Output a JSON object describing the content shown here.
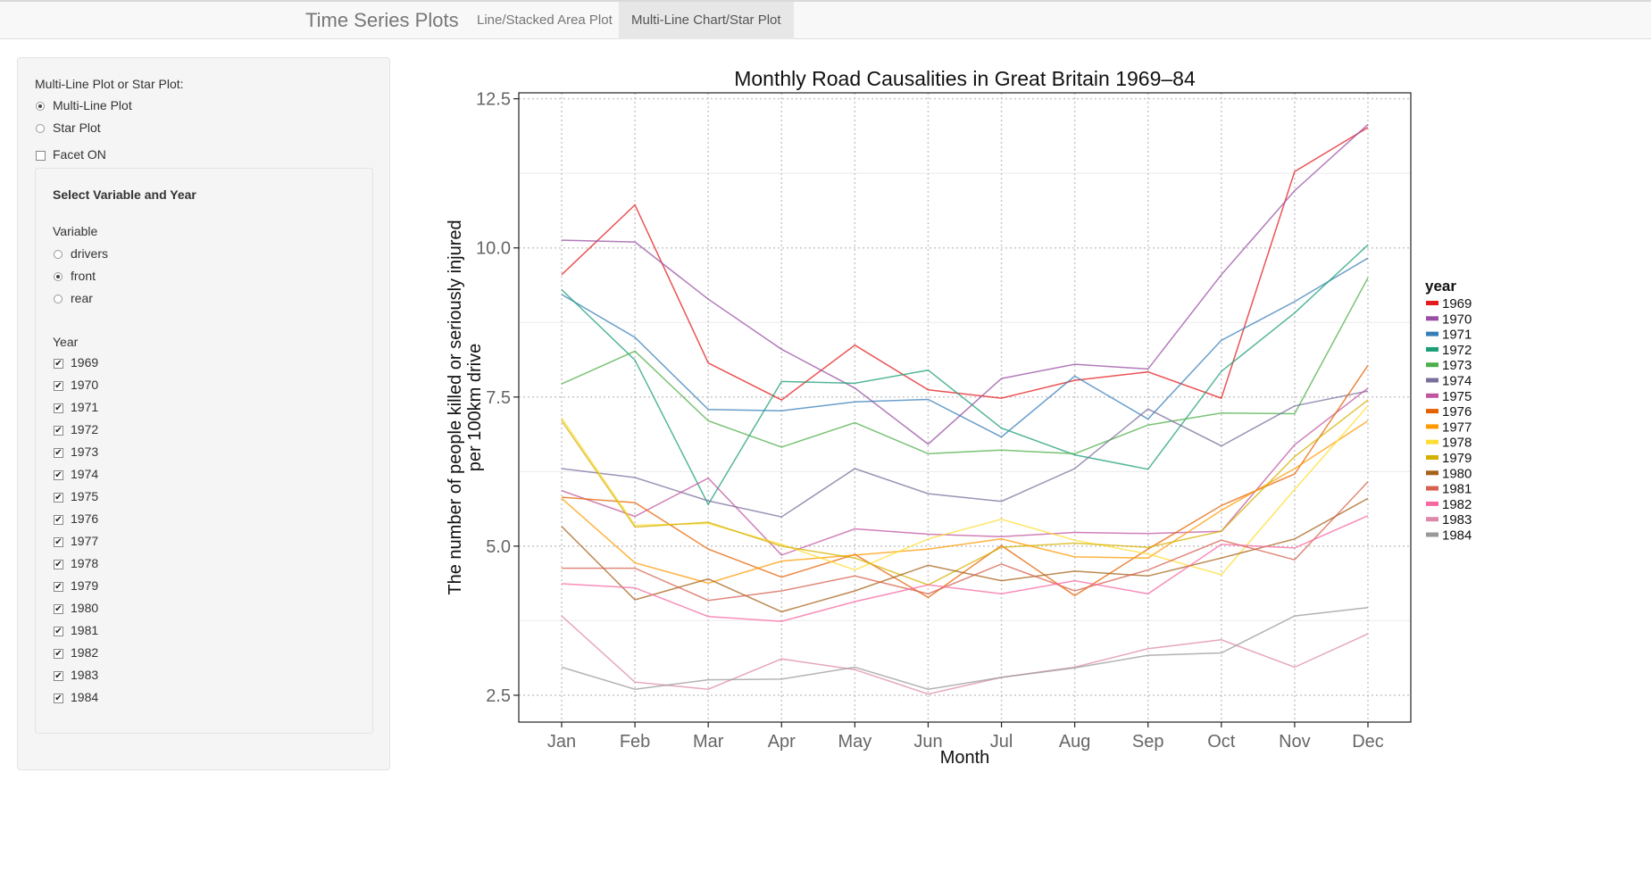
{
  "navbar": {
    "brand": "Time Series Plots",
    "tabs": [
      {
        "label": "Line/Stacked Area Plot",
        "active": false
      },
      {
        "label": "Multi-Line Chart/Star Plot",
        "active": true
      }
    ]
  },
  "sidebar": {
    "plot_type_label": "Multi-Line Plot or Star Plot:",
    "plot_type_options": [
      {
        "label": "Multi-Line Plot",
        "selected": true
      },
      {
        "label": "Star Plot",
        "selected": false
      }
    ],
    "facet": {
      "label": "Facet ON",
      "checked": false
    },
    "panel_title": "Select Variable and Year",
    "variable_label": "Variable",
    "variable_options": [
      {
        "label": "drivers",
        "selected": false
      },
      {
        "label": "front",
        "selected": true
      },
      {
        "label": "rear",
        "selected": false
      }
    ],
    "year_label": "Year",
    "years": [
      {
        "label": "1969",
        "checked": true
      },
      {
        "label": "1970",
        "checked": true
      },
      {
        "label": "1971",
        "checked": true
      },
      {
        "label": "1972",
        "checked": true
      },
      {
        "label": "1973",
        "checked": true
      },
      {
        "label": "1974",
        "checked": true
      },
      {
        "label": "1975",
        "checked": true
      },
      {
        "label": "1976",
        "checked": true
      },
      {
        "label": "1977",
        "checked": true
      },
      {
        "label": "1978",
        "checked": true
      },
      {
        "label": "1979",
        "checked": true
      },
      {
        "label": "1980",
        "checked": true
      },
      {
        "label": "1981",
        "checked": true
      },
      {
        "label": "1982",
        "checked": true
      },
      {
        "label": "1983",
        "checked": true
      },
      {
        "label": "1984",
        "checked": true
      }
    ]
  },
  "chart_data": {
    "type": "line",
    "title": "Monthly Road Causalities in Great Britain 1969–84",
    "xlabel": "Month",
    "ylabel": [
      "The number of people killed or seriously injured",
      "per 100km drive"
    ],
    "ylim": [
      2.05,
      12.6
    ],
    "yticks": [
      2.5,
      5.0,
      7.5,
      10.0,
      12.5
    ],
    "ytick_labels": [
      "2.5",
      "5.0",
      "7.5",
      "10.0",
      "12.5"
    ],
    "categories": [
      "Jan",
      "Feb",
      "Mar",
      "Apr",
      "May",
      "Jun",
      "Jul",
      "Aug",
      "Sep",
      "Oct",
      "Nov",
      "Dec"
    ],
    "grid": true,
    "legend_title": "year",
    "legend_position": "right",
    "series": [
      {
        "name": "1969",
        "color": "#e41a1c",
        "values": [
          9.55,
          10.72,
          8.07,
          7.45,
          8.37,
          7.62,
          7.48,
          7.78,
          7.92,
          7.48,
          11.28,
          12.02
        ]
      },
      {
        "name": "1970",
        "color": "#984ea3",
        "values": [
          10.13,
          10.1,
          9.14,
          8.3,
          7.65,
          6.71,
          7.81,
          8.05,
          7.97,
          9.55,
          10.96,
          12.07
        ]
      },
      {
        "name": "1971",
        "color": "#377eb8",
        "values": [
          9.22,
          8.5,
          7.29,
          7.27,
          7.42,
          7.46,
          6.83,
          7.85,
          7.13,
          8.45,
          9.1,
          9.83
        ]
      },
      {
        "name": "1972",
        "color": "#1b9e77",
        "values": [
          9.3,
          8.12,
          5.7,
          7.76,
          7.73,
          7.95,
          6.98,
          6.53,
          6.29,
          7.93,
          8.91,
          10.05
        ]
      },
      {
        "name": "1973",
        "color": "#4daf4a",
        "values": [
          7.72,
          8.27,
          7.1,
          6.66,
          7.07,
          6.55,
          6.61,
          6.55,
          7.03,
          7.23,
          7.22,
          9.5
        ]
      },
      {
        "name": "1974",
        "color": "#7a6f9c",
        "values": [
          6.3,
          6.15,
          5.76,
          5.49,
          6.3,
          5.88,
          5.75,
          6.3,
          7.3,
          6.68,
          7.35,
          7.6
        ]
      },
      {
        "name": "1975",
        "color": "#c0569f",
        "values": [
          5.93,
          5.5,
          6.14,
          4.85,
          5.29,
          5.2,
          5.16,
          5.23,
          5.21,
          5.25,
          6.7,
          7.65
        ]
      },
      {
        "name": "1976",
        "color": "#e66101",
        "values": [
          5.82,
          5.73,
          4.95,
          4.48,
          4.86,
          4.14,
          5.01,
          4.17,
          4.95,
          5.68,
          6.21,
          8.03
        ]
      },
      {
        "name": "1977",
        "color": "#ff9900",
        "values": [
          5.8,
          4.72,
          4.38,
          4.75,
          4.85,
          4.95,
          5.12,
          4.82,
          4.8,
          5.6,
          6.3,
          7.1
        ]
      },
      {
        "name": "1978",
        "color": "#ffdd33",
        "values": [
          7.15,
          5.35,
          5.38,
          5.03,
          4.6,
          5.12,
          5.45,
          5.1,
          4.87,
          4.52,
          5.95,
          7.35
        ]
      },
      {
        "name": "1979",
        "color": "#d4b000",
        "values": [
          7.1,
          5.32,
          5.4,
          5.0,
          4.8,
          4.35,
          4.98,
          5.05,
          4.98,
          5.25,
          6.5,
          7.45
        ]
      },
      {
        "name": "1980",
        "color": "#a6611a",
        "values": [
          5.33,
          4.1,
          4.45,
          3.9,
          4.25,
          4.68,
          4.42,
          4.58,
          4.5,
          4.8,
          5.12,
          5.8
        ]
      },
      {
        "name": "1981",
        "color": "#d6604d",
        "values": [
          4.63,
          4.63,
          4.09,
          4.25,
          4.5,
          4.2,
          4.7,
          4.25,
          4.6,
          5.1,
          4.77,
          6.08
        ]
      },
      {
        "name": "1982",
        "color": "#f768a1",
        "values": [
          4.37,
          4.3,
          3.82,
          3.74,
          4.07,
          4.35,
          4.2,
          4.42,
          4.2,
          5.03,
          4.97,
          5.51
        ]
      },
      {
        "name": "1983",
        "color": "#dd88aa",
        "values": [
          3.83,
          2.72,
          2.6,
          3.11,
          2.93,
          2.52,
          2.8,
          2.97,
          3.28,
          3.43,
          2.97,
          3.53
        ]
      },
      {
        "name": "1984",
        "color": "#999999",
        "values": [
          2.97,
          2.6,
          2.76,
          2.77,
          2.97,
          2.6,
          2.8,
          2.96,
          3.17,
          3.21,
          3.83,
          3.97
        ]
      }
    ]
  }
}
